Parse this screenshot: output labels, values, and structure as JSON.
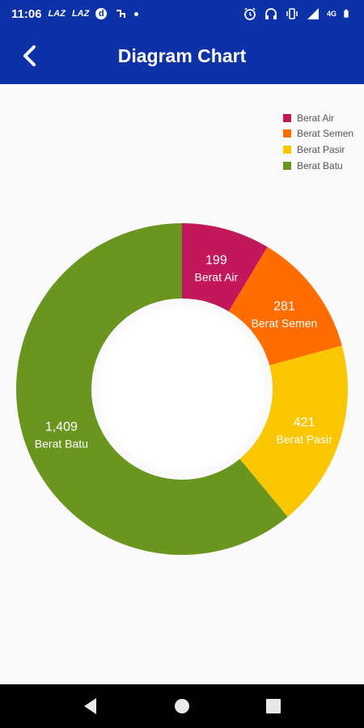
{
  "status_bar": {
    "time": "11:06",
    "indicators": [
      "LAZ",
      "LAZ"
    ],
    "d_badge": "d",
    "network_label": "4G",
    "icons": [
      "alarm-icon",
      "headphones-icon",
      "vibrate-icon",
      "signal-icon",
      "battery-icon"
    ]
  },
  "app_bar": {
    "title": "Diagram Chart",
    "back_icon": "chevron-left-icon"
  },
  "colors": {
    "primary": "#0d32a8",
    "air": "#c2185b",
    "semen": "#ff6d00",
    "pasir": "#f9c600",
    "batu": "#6a961f"
  },
  "chart_data": {
    "type": "pie",
    "variant": "donut",
    "legend_position": "top-right",
    "categories": [
      "Berat Air",
      "Berat Semen",
      "Berat Pasir",
      "Berat Batu"
    ],
    "values": [
      199,
      281,
      421,
      1409
    ],
    "value_labels": [
      "199",
      "281",
      "421",
      "1,409"
    ],
    "colors": [
      "#c2185b",
      "#ff6d00",
      "#f9c600",
      "#6a961f"
    ]
  },
  "nav_bar": {
    "buttons": [
      "back-triangle-icon",
      "home-circle-icon",
      "recents-square-icon"
    ]
  }
}
